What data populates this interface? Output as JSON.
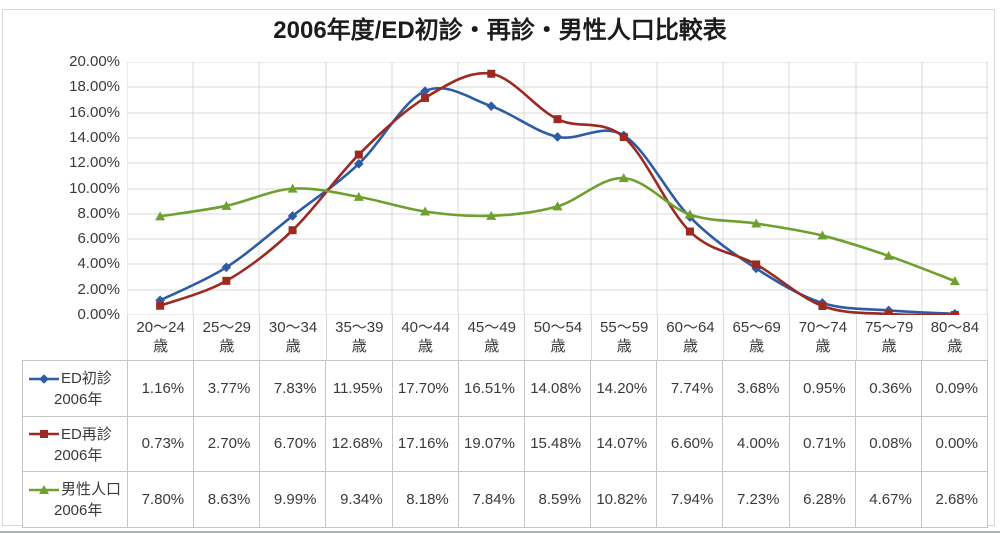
{
  "title": "2006年度/ED初診・再診・男性人口比較表",
  "y_axis": {
    "ticks": [
      "20.00%",
      "18.00%",
      "16.00%",
      "14.00%",
      "12.00%",
      "10.00%",
      "8.00%",
      "6.00%",
      "4.00%",
      "2.00%",
      "0.00%"
    ]
  },
  "x_axis": {
    "categories": [
      {
        "line1": "20〜24",
        "line2": "歳"
      },
      {
        "line1": "25〜29",
        "line2": "歳"
      },
      {
        "line1": "30〜34",
        "line2": "歳"
      },
      {
        "line1": "35〜39",
        "line2": "歳"
      },
      {
        "line1": "40〜44",
        "line2": "歳"
      },
      {
        "line1": "45〜49",
        "line2": "歳"
      },
      {
        "line1": "50〜54",
        "line2": "歳"
      },
      {
        "line1": "55〜59",
        "line2": "歳"
      },
      {
        "line1": "60〜64",
        "line2": "歳"
      },
      {
        "line1": "65〜69",
        "line2": "歳"
      },
      {
        "line1": "70〜74",
        "line2": "歳"
      },
      {
        "line1": "75〜79",
        "line2": "歳"
      },
      {
        "line1": "80〜84",
        "line2": "歳"
      }
    ]
  },
  "chart_data": {
    "type": "line",
    "smooth": true,
    "grid": true,
    "ylim": [
      0,
      20
    ],
    "y_step": 2,
    "categories": [
      "20〜24歳",
      "25〜29歳",
      "30〜34歳",
      "35〜39歳",
      "40〜44歳",
      "45〜49歳",
      "50〜54歳",
      "55〜59歳",
      "60〜64歳",
      "65〜69歳",
      "70〜74歳",
      "75〜79歳",
      "80〜84歳"
    ],
    "series": [
      {
        "name": "ED初診",
        "year": "2006年",
        "marker": "diamond",
        "color": "#2e5ba6",
        "values": [
          1.16,
          3.77,
          7.83,
          11.95,
          17.7,
          16.51,
          14.08,
          14.2,
          7.74,
          3.68,
          0.95,
          0.36,
          0.09
        ],
        "display": [
          "1.16%",
          "3.77%",
          "7.83%",
          "11.95%",
          "17.70%",
          "16.51%",
          "14.08%",
          "14.20%",
          "7.74%",
          "3.68%",
          "0.95%",
          "0.36%",
          "0.09%"
        ]
      },
      {
        "name": "ED再診",
        "year": "2006年",
        "marker": "square",
        "color": "#9c2a21",
        "values": [
          0.73,
          2.7,
          6.7,
          12.68,
          17.16,
          19.07,
          15.48,
          14.07,
          6.6,
          4.0,
          0.71,
          0.08,
          0.0
        ],
        "display": [
          "0.73%",
          "2.70%",
          "6.70%",
          "12.68%",
          "17.16%",
          "19.07%",
          "15.48%",
          "14.07%",
          "6.60%",
          "4.00%",
          "0.71%",
          "0.08%",
          "0.00%"
        ]
      },
      {
        "name": "男性人口",
        "year": "2006年",
        "marker": "triangle",
        "color": "#6fa02f",
        "values": [
          7.8,
          8.63,
          9.99,
          9.34,
          8.18,
          7.84,
          8.59,
          10.82,
          7.94,
          7.23,
          6.28,
          4.67,
          2.68
        ],
        "display": [
          "7.80%",
          "8.63%",
          "9.99%",
          "9.34%",
          "8.18%",
          "7.84%",
          "8.59%",
          "10.82%",
          "7.94%",
          "7.23%",
          "6.28%",
          "4.67%",
          "2.68%"
        ]
      }
    ]
  },
  "colors": {
    "gridline": "#d9d9d9",
    "table_border": "#c6c6c6",
    "text": "#3a3a3a"
  }
}
